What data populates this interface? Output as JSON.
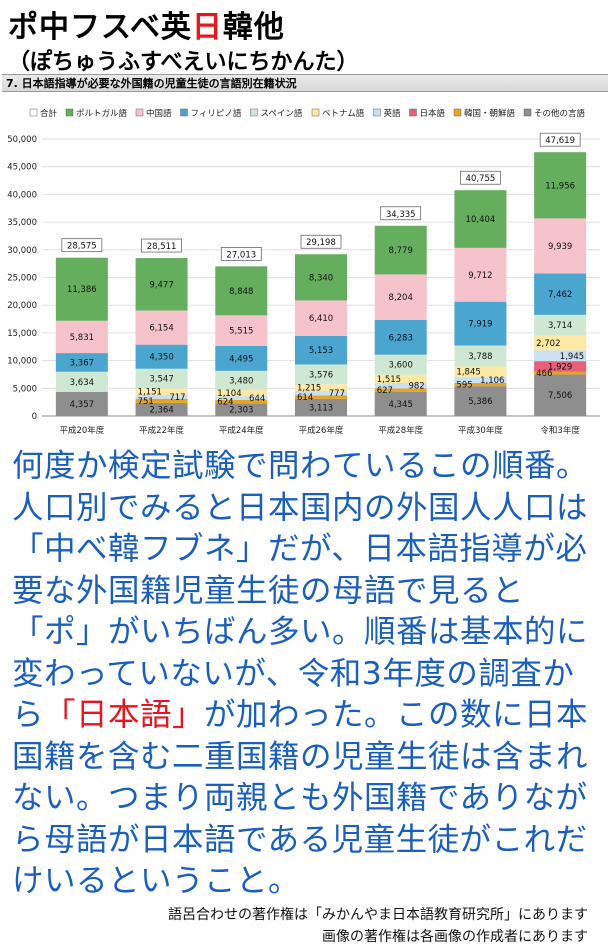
{
  "header": {
    "title_part1": "ポ中フスベ英",
    "title_highlight": "日",
    "title_part2": "韓他",
    "reading": "（ぽちゅうふすべえいにちかんた）",
    "caption": "7. 日本語指導が必要な外国籍の児童生徒の言語別在籍状況"
  },
  "chart_data": {
    "type": "bar",
    "stacked": true,
    "categories": [
      "平成20年度",
      "平成22年度",
      "平成24年度",
      "平成26年度",
      "平成28年度",
      "平成30年度",
      "令和3年度"
    ],
    "totals": [
      28575,
      28511,
      27013,
      29198,
      34335,
      40755,
      47619
    ],
    "series": [
      {
        "name": "その他の言語",
        "color": "#8e8e8e",
        "values": [
          4357,
          2364,
          2303,
          3113,
          4345,
          5386,
          7506
        ]
      },
      {
        "name": "韓国・朝鮮語",
        "color": "#e6a422",
        "values": [
          0,
          751,
          624,
          614,
          627,
          595,
          466
        ]
      },
      {
        "name": "日本語",
        "color": "#e85f78",
        "values": [
          0,
          0,
          0,
          0,
          0,
          0,
          1929
        ]
      },
      {
        "name": "英語",
        "color": "#c8e0ef",
        "values": [
          0,
          717,
          644,
          777,
          982,
          1106,
          1945
        ]
      },
      {
        "name": "ベトナム語",
        "color": "#fde9a3",
        "values": [
          0,
          1151,
          1104,
          1215,
          1515,
          1845,
          2702
        ]
      },
      {
        "name": "スペイン語",
        "color": "#cfe8d3",
        "values": [
          3634,
          3547,
          3480,
          3576,
          3600,
          3788,
          3714
        ]
      },
      {
        "name": "フィリピノ語",
        "color": "#4ba6cf",
        "values": [
          3367,
          4350,
          4495,
          5153,
          6283,
          7919,
          7462
        ]
      },
      {
        "name": "中国語",
        "color": "#f6c3cc",
        "values": [
          5831,
          6154,
          5515,
          6410,
          8204,
          9712,
          9939
        ]
      },
      {
        "name": "ポルトガル語",
        "color": "#65ae5e",
        "values": [
          11386,
          9477,
          8848,
          8340,
          8779,
          10404,
          11956
        ]
      }
    ],
    "legend": [
      "合計",
      "ポルトガル語",
      "中国語",
      "フィリピノ語",
      "スペイン語",
      "ベトナム語",
      "英語",
      "日本語",
      "韓国・朝鮮語",
      "その他の言語"
    ],
    "legend_colors": [
      "#ffffff",
      "#65ae5e",
      "#f6c3cc",
      "#4ba6cf",
      "#cfe8d3",
      "#fde9a3",
      "#c8e0ef",
      "#e85f78",
      "#e6a422",
      "#8e8e8e"
    ],
    "yticks": [
      "0",
      "5,000",
      "10,000",
      "15,000",
      "20,000",
      "25,000",
      "30,000",
      "35,000",
      "40,000",
      "45,000",
      "50,000"
    ],
    "ylim": [
      0,
      50000
    ],
    "legend_position": "top",
    "grid": true,
    "labels": [
      [
        "4,357",
        "",
        "",
        "",
        "",
        "3,634",
        "3,367",
        "5,831",
        "11,386"
      ],
      [
        "2,364",
        "751",
        "",
        "717",
        "1,151",
        "3,547",
        "4,350",
        "6,154",
        "9,477"
      ],
      [
        "2,303",
        "624",
        "",
        "644",
        "1,104",
        "3,480",
        "4,495",
        "5,515",
        "8,848"
      ],
      [
        "3,113",
        "614",
        "",
        "777",
        "1,215",
        "3,576",
        "5,153",
        "6,410",
        "8,340"
      ],
      [
        "4,345",
        "627",
        "",
        "982",
        "1,515",
        "3,600",
        "6,283",
        "8,204",
        "8,779"
      ],
      [
        "5,386",
        "595",
        "",
        "1,106",
        "1,845",
        "3,788",
        "7,919",
        "9,712",
        "10,404"
      ],
      [
        "7,506",
        "466",
        "1,929",
        "1,945",
        "2,702",
        "3,714",
        "7,462",
        "9,939",
        "11,956"
      ]
    ],
    "total_labels": [
      "28,575",
      "28,511",
      "27,013",
      "29,198",
      "34,335",
      "40,755",
      "47,619"
    ]
  },
  "body": {
    "part1": "何度か検定試験で問わているこの順番。人口別でみると日本国内の外国人人口は「中べ韓フブネ」だが、日本語指導が必要な外国籍児童生徒の母語で見ると「ポ」がいちばん多い。順番は基本的に変わっていないが、令和3年度の調査から",
    "highlight": "「日本語」",
    "part2": "が加わった。この数に日本国籍を含む二重国籍の児童生徒は含まれない。つまり両親とも外国籍でありながら母語が日本語である児童生徒がこれだけいるということ。"
  },
  "credits": {
    "line1": "語呂合わせの著作権は「みかんやま日本語教育研究所」にあります",
    "line2": "画像の著作権は各画像の作成者にあります"
  }
}
